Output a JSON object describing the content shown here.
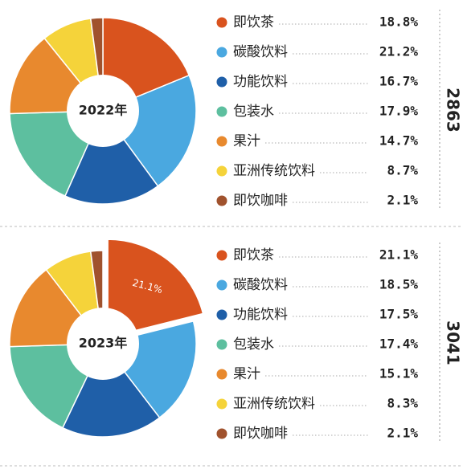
{
  "chart_data": [
    {
      "type": "pie",
      "center_label": "2022年",
      "total": 2863,
      "categories": [
        "即饮茶",
        "碳酸饮料",
        "功能饮料",
        "包装水",
        "果汁",
        "亚洲传统饮料",
        "即饮咖啡"
      ],
      "values": [
        18.8,
        21.2,
        16.7,
        17.9,
        14.7,
        8.7,
        2.1
      ],
      "value_labels": [
        "18.8%",
        "21.2%",
        "16.7%",
        "17.9%",
        "14.7%",
        "8.7%",
        "2.1%"
      ],
      "colors": [
        "#d9531e",
        "#4aa8e0",
        "#1f5fa8",
        "#5dbf9f",
        "#e8892e",
        "#f5d33a",
        "#a0522d"
      ]
    },
    {
      "type": "pie",
      "center_label": "2023年",
      "total": 3041,
      "categories": [
        "即饮茶",
        "碳酸饮料",
        "功能饮料",
        "包装水",
        "果汁",
        "亚洲传统饮料",
        "即饮咖啡"
      ],
      "values": [
        21.1,
        18.5,
        17.5,
        17.4,
        15.1,
        8.3,
        2.1
      ],
      "value_labels": [
        "21.1%",
        "18.5%",
        "17.5%",
        "17.4%",
        "15.1%",
        "8.3%",
        "2.1%"
      ],
      "colors": [
        "#d9531e",
        "#4aa8e0",
        "#1f5fa8",
        "#5dbf9f",
        "#e8892e",
        "#f5d33a",
        "#a0522d"
      ]
    }
  ]
}
